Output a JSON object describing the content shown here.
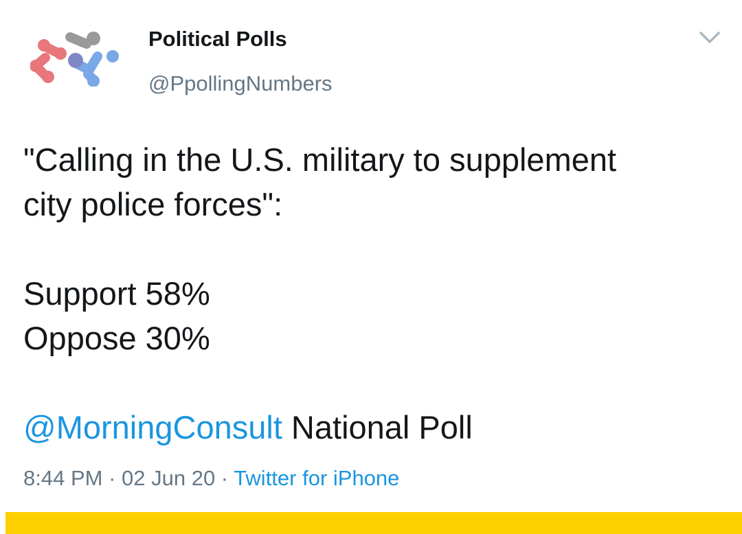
{
  "header": {
    "display_name": "Political Polls",
    "handle": "@PpollingNumbers",
    "menu_icon": "chevron-down-icon",
    "avatar_icon": "network-nodes-logo"
  },
  "tweet": {
    "line1": "\"Calling in the U.S. military to supplement",
    "line2": "city police forces\":",
    "support": "Support 58%",
    "oppose": "Oppose 30%",
    "mention": "@MorningConsult",
    "after_mention": " National Poll"
  },
  "meta": {
    "time": "8:44 PM",
    "separator": " · ",
    "date": "02 Jun 20",
    "source": "Twitter for iPhone"
  },
  "colors": {
    "link": "#1b95e0",
    "secondary_text": "#657786",
    "bottom_bar": "#ffd000",
    "logo_red": "#e8767a",
    "logo_gray": "#9a9a9a",
    "logo_blue": "#7aa7e6",
    "logo_mid": "#7f88c4"
  }
}
